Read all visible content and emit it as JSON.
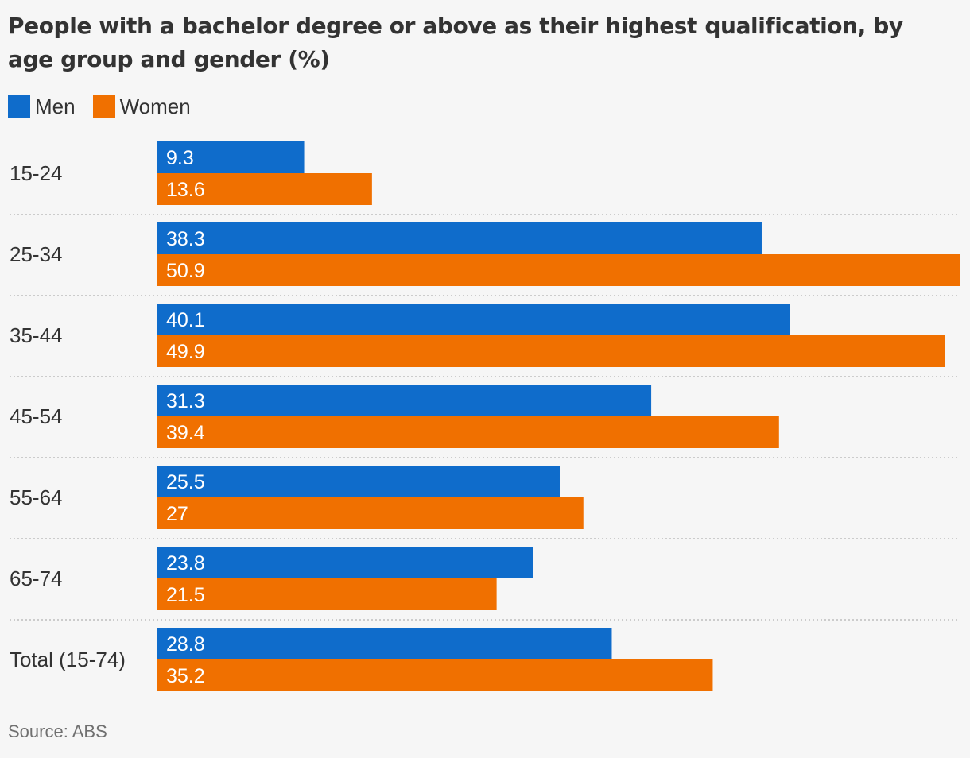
{
  "title": "People with a bachelor degree or above as their highest qualification, by age group and gender (%)",
  "source": "Source: ABS",
  "colors": {
    "men": "#0f6ccb",
    "women": "#f07000",
    "background": "#f6f6f6"
  },
  "chart_data": {
    "type": "bar",
    "orientation": "horizontal",
    "title": "People with a bachelor degree or above as their highest qualification, by age group and gender (%)",
    "categories": [
      "15-24",
      "25-34",
      "35-44",
      "45-54",
      "55-64",
      "65-74",
      "Total (15-74)"
    ],
    "series": [
      {
        "name": "Men",
        "color": "#0f6ccb",
        "values": [
          9.3,
          38.3,
          40.1,
          31.3,
          25.5,
          23.8,
          28.8
        ],
        "labels": [
          "9.3",
          "38.3",
          "40.1",
          "31.3",
          "25.5",
          "23.8",
          "28.8"
        ]
      },
      {
        "name": "Women",
        "color": "#f07000",
        "values": [
          13.6,
          50.9,
          49.9,
          39.4,
          27,
          21.5,
          35.2
        ],
        "labels": [
          "13.6",
          "50.9",
          "49.9",
          "39.4",
          "27",
          "21.5",
          "35.2"
        ]
      }
    ],
    "xlim": [
      0,
      50.9
    ],
    "legend_position": "top-left",
    "grid": false,
    "data_labels": "inside-left"
  }
}
